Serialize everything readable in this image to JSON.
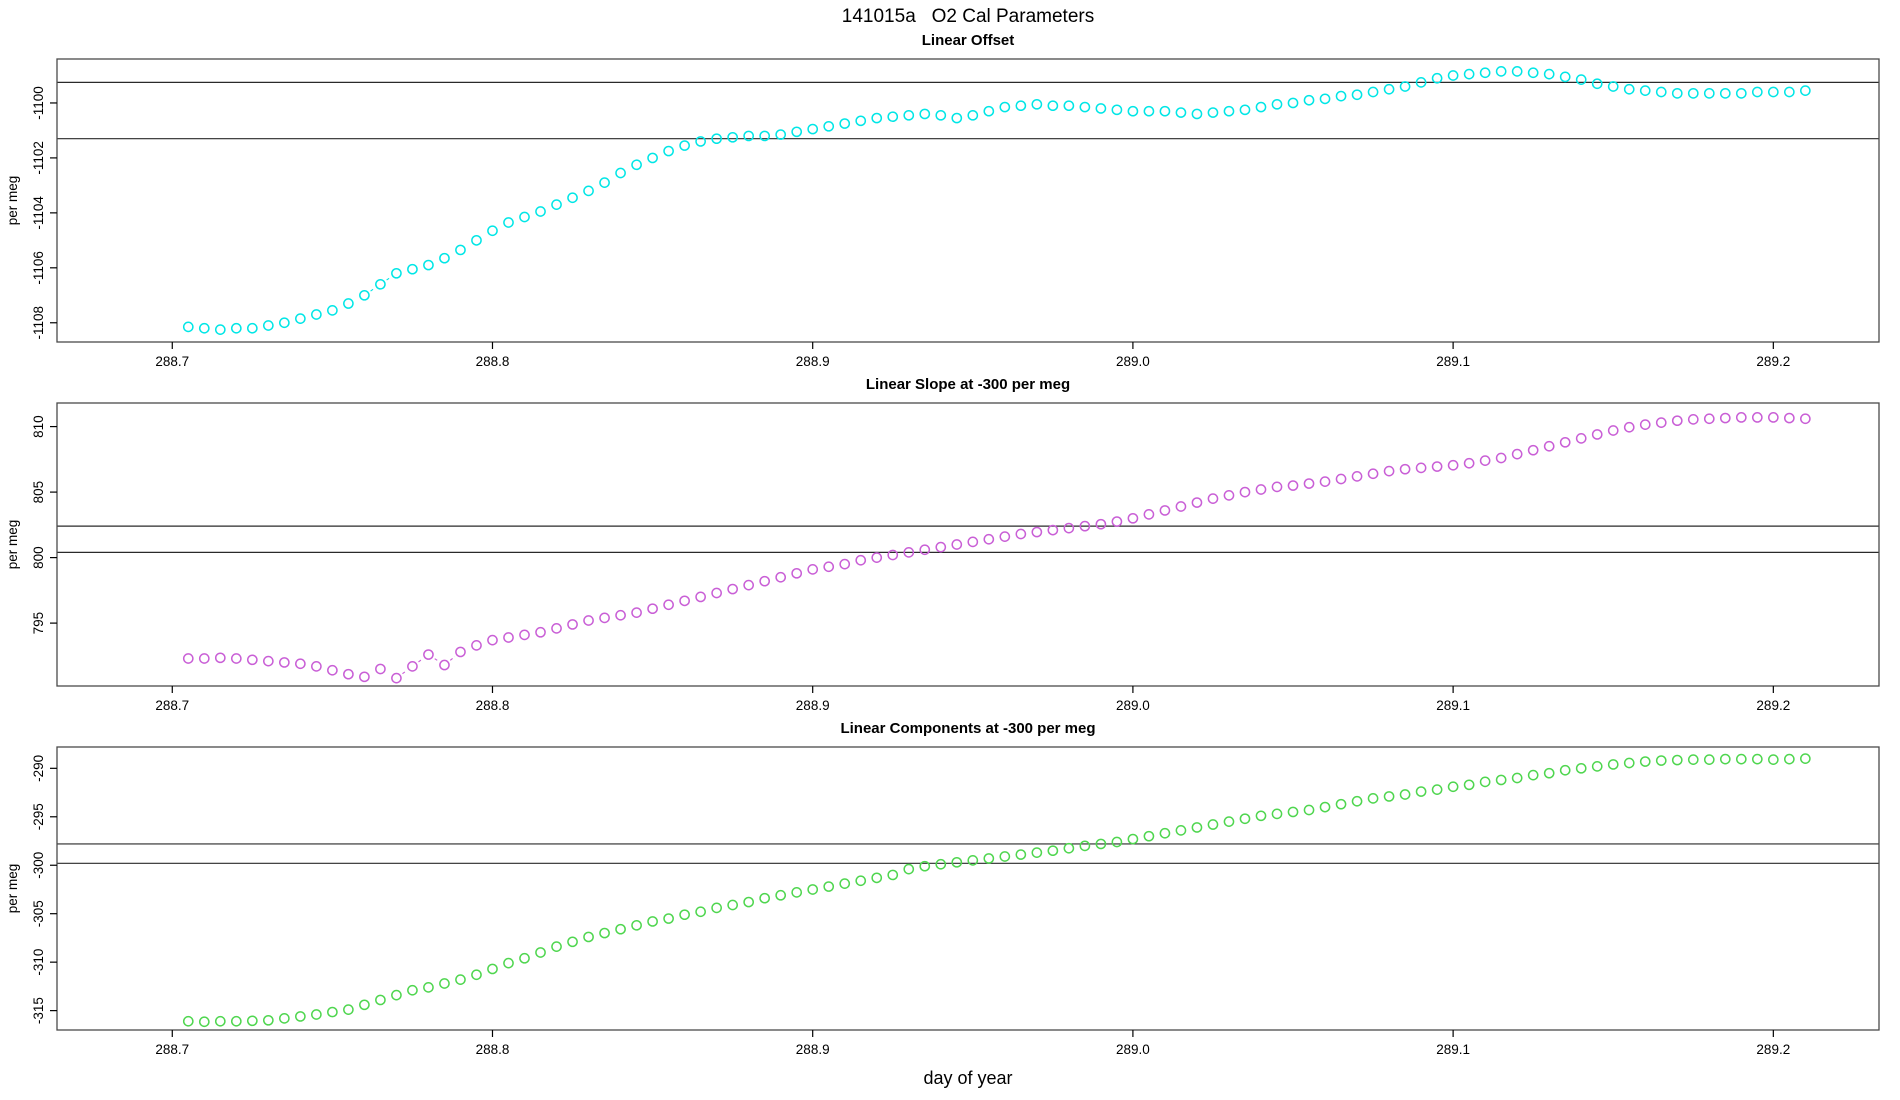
{
  "page_title": "141015a   O2 Cal Parameters",
  "x_axis_label": "day of year",
  "colors": {
    "offset_series": "#00e6e6",
    "slope_series": "#c95fd6",
    "components_series": "#4fd64f",
    "reference_line": "#2a2a2a",
    "panel_border": "#4a4a4a"
  },
  "chart_data": [
    {
      "type": "scatter",
      "title": "Linear Offset",
      "ylabel": "per meg",
      "marker": "open-circle",
      "grid": false,
      "xlim": [
        288.664,
        289.233
      ],
      "ylim": [
        -1108.7,
        -1098.4
      ],
      "xticks": [
        "288.7",
        "288.8",
        "288.9",
        "289.0",
        "289.1",
        "289.2"
      ],
      "xtick_values": [
        288.7,
        288.8,
        288.9,
        289.0,
        289.1,
        289.2
      ],
      "yticks": [
        "-1108",
        "-1106",
        "-1104",
        "-1102",
        "-1100"
      ],
      "ytick_values": [
        -1108,
        -1106,
        -1104,
        -1102,
        -1100
      ],
      "hlines": [
        -1099.25,
        -1101.3
      ],
      "series": [
        {
          "name": "linear offset",
          "color_key": "offset_series",
          "x": [
            288.705,
            288.71,
            288.715,
            288.72,
            288.725,
            288.73,
            288.735,
            288.74,
            288.745,
            288.75,
            288.755,
            288.76,
            288.765,
            288.77,
            288.775,
            288.78,
            288.785,
            288.79,
            288.795,
            288.8,
            288.805,
            288.81,
            288.815,
            288.82,
            288.825,
            288.83,
            288.835,
            288.84,
            288.845,
            288.85,
            288.855,
            288.86,
            288.865,
            288.87,
            288.875,
            288.88,
            288.885,
            288.89,
            288.895,
            288.9,
            288.905,
            288.91,
            288.915,
            288.92,
            288.925,
            288.93,
            288.935,
            288.94,
            288.945,
            288.95,
            288.955,
            288.96,
            288.965,
            288.97,
            288.975,
            288.98,
            288.985,
            288.99,
            288.995,
            289.0,
            289.005,
            289.01,
            289.015,
            289.02,
            289.025,
            289.03,
            289.035,
            289.04,
            289.045,
            289.05,
            289.055,
            289.06,
            289.065,
            289.07,
            289.075,
            289.08,
            289.085,
            289.09,
            289.095,
            289.1,
            289.105,
            289.11,
            289.115,
            289.12,
            289.125,
            289.13,
            289.135,
            289.14,
            289.145,
            289.15,
            289.155,
            289.16,
            289.165,
            289.17,
            289.175,
            289.18,
            289.185,
            289.19,
            289.195,
            289.2,
            289.205,
            289.21
          ],
          "y": [
            -1108.15,
            -1108.2,
            -1108.25,
            -1108.2,
            -1108.2,
            -1108.1,
            -1108.0,
            -1107.85,
            -1107.7,
            -1107.55,
            -1107.3,
            -1107.0,
            -1106.6,
            -1106.2,
            -1106.05,
            -1105.9,
            -1105.65,
            -1105.35,
            -1105.0,
            -1104.65,
            -1104.35,
            -1104.15,
            -1103.95,
            -1103.7,
            -1103.45,
            -1103.2,
            -1102.9,
            -1102.55,
            -1102.25,
            -1102.0,
            -1101.75,
            -1101.55,
            -1101.4,
            -1101.3,
            -1101.25,
            -1101.2,
            -1101.2,
            -1101.15,
            -1101.05,
            -1100.95,
            -1100.85,
            -1100.75,
            -1100.65,
            -1100.55,
            -1100.5,
            -1100.45,
            -1100.4,
            -1100.45,
            -1100.55,
            -1100.45,
            -1100.3,
            -1100.15,
            -1100.1,
            -1100.05,
            -1100.1,
            -1100.1,
            -1100.15,
            -1100.2,
            -1100.25,
            -1100.3,
            -1100.3,
            -1100.3,
            -1100.35,
            -1100.4,
            -1100.35,
            -1100.3,
            -1100.25,
            -1100.15,
            -1100.05,
            -1100.0,
            -1099.9,
            -1099.85,
            -1099.75,
            -1099.7,
            -1099.6,
            -1099.5,
            -1099.4,
            -1099.25,
            -1099.1,
            -1099.0,
            -1098.95,
            -1098.9,
            -1098.85,
            -1098.85,
            -1098.9,
            -1098.95,
            -1099.05,
            -1099.15,
            -1099.3,
            -1099.4,
            -1099.5,
            -1099.55,
            -1099.6,
            -1099.65,
            -1099.65,
            -1099.65,
            -1099.65,
            -1099.65,
            -1099.6,
            -1099.6,
            -1099.6,
            -1099.55
          ]
        }
      ]
    },
    {
      "type": "scatter",
      "title": "Linear Slope at -300 per meg",
      "ylabel": "per meg",
      "marker": "open-circle",
      "grid": false,
      "xlim": [
        288.664,
        289.233
      ],
      "ylim": [
        790.2,
        811.8
      ],
      "xticks": [
        "288.7",
        "288.8",
        "288.9",
        "289.0",
        "289.1",
        "289.2"
      ],
      "xtick_values": [
        288.7,
        288.8,
        288.9,
        289.0,
        289.1,
        289.2
      ],
      "yticks": [
        "795",
        "800",
        "805",
        "810"
      ],
      "ytick_values": [
        795,
        800,
        805,
        810
      ],
      "hlines": [
        802.4,
        800.4
      ],
      "series": [
        {
          "name": "linear slope at -300 per meg",
          "color_key": "slope_series",
          "x": [
            288.705,
            288.71,
            288.715,
            288.72,
            288.725,
            288.73,
            288.735,
            288.74,
            288.745,
            288.75,
            288.755,
            288.76,
            288.765,
            288.77,
            288.775,
            288.78,
            288.785,
            288.79,
            288.795,
            288.8,
            288.805,
            288.81,
            288.815,
            288.82,
            288.825,
            288.83,
            288.835,
            288.84,
            288.845,
            288.85,
            288.855,
            288.86,
            288.865,
            288.87,
            288.875,
            288.88,
            288.885,
            288.89,
            288.895,
            288.9,
            288.905,
            288.91,
            288.915,
            288.92,
            288.925,
            288.93,
            288.935,
            288.94,
            288.945,
            288.95,
            288.955,
            288.96,
            288.965,
            288.97,
            288.975,
            288.98,
            288.985,
            288.99,
            288.995,
            289.0,
            289.005,
            289.01,
            289.015,
            289.02,
            289.025,
            289.03,
            289.035,
            289.04,
            289.045,
            289.05,
            289.055,
            289.06,
            289.065,
            289.07,
            289.075,
            289.08,
            289.085,
            289.09,
            289.095,
            289.1,
            289.105,
            289.11,
            289.115,
            289.12,
            289.125,
            289.13,
            289.135,
            289.14,
            289.145,
            289.15,
            289.155,
            289.16,
            289.165,
            289.17,
            289.175,
            289.18,
            289.185,
            289.19,
            289.195,
            289.2,
            289.205,
            289.21
          ],
          "y": [
            792.3,
            792.3,
            792.35,
            792.3,
            792.2,
            792.1,
            792.0,
            791.9,
            791.7,
            791.4,
            791.1,
            790.9,
            791.5,
            790.8,
            791.7,
            792.6,
            791.8,
            792.8,
            793.3,
            793.7,
            793.9,
            794.1,
            794.3,
            794.6,
            794.9,
            795.2,
            795.4,
            795.6,
            795.8,
            796.1,
            796.4,
            796.7,
            797.0,
            797.3,
            797.6,
            797.9,
            798.2,
            798.5,
            798.8,
            799.1,
            799.3,
            799.5,
            799.8,
            800.0,
            800.2,
            800.4,
            800.6,
            800.8,
            801.0,
            801.2,
            801.4,
            801.6,
            801.8,
            801.95,
            802.1,
            802.25,
            802.4,
            802.55,
            802.75,
            803.0,
            803.3,
            803.6,
            803.9,
            804.2,
            804.5,
            804.75,
            805.0,
            805.2,
            805.4,
            805.5,
            805.65,
            805.8,
            806.0,
            806.2,
            806.4,
            806.6,
            806.75,
            806.85,
            806.95,
            807.05,
            807.2,
            807.4,
            807.6,
            807.9,
            808.2,
            808.5,
            808.8,
            809.1,
            809.4,
            809.7,
            809.95,
            810.15,
            810.3,
            810.45,
            810.55,
            810.6,
            810.65,
            810.7,
            810.7,
            810.7,
            810.65,
            810.6
          ]
        }
      ]
    },
    {
      "type": "scatter",
      "title": "Linear Components at -300 per meg",
      "ylabel": "per meg",
      "marker": "open-circle",
      "grid": false,
      "xlim": [
        288.664,
        289.233
      ],
      "ylim": [
        -317.0,
        -287.8
      ],
      "xticks": [
        "288.7",
        "288.8",
        "288.9",
        "289.0",
        "289.1",
        "289.2"
      ],
      "xtick_values": [
        288.7,
        288.8,
        288.9,
        289.0,
        289.1,
        289.2
      ],
      "yticks": [
        "-315",
        "-310",
        "-305",
        "-300",
        "-295",
        "-290"
      ],
      "ytick_values": [
        -315,
        -310,
        -305,
        -300,
        -295,
        -290
      ],
      "hlines": [
        -297.8,
        -299.8
      ],
      "series": [
        {
          "name": "linear components at -300 per meg",
          "color_key": "components_series",
          "x": [
            288.705,
            288.71,
            288.715,
            288.72,
            288.725,
            288.73,
            288.735,
            288.74,
            288.745,
            288.75,
            288.755,
            288.76,
            288.765,
            288.77,
            288.775,
            288.78,
            288.785,
            288.79,
            288.795,
            288.8,
            288.805,
            288.81,
            288.815,
            288.82,
            288.825,
            288.83,
            288.835,
            288.84,
            288.845,
            288.85,
            288.855,
            288.86,
            288.865,
            288.87,
            288.875,
            288.88,
            288.885,
            288.89,
            288.895,
            288.9,
            288.905,
            288.91,
            288.915,
            288.92,
            288.925,
            288.93,
            288.935,
            288.94,
            288.945,
            288.95,
            288.955,
            288.96,
            288.965,
            288.97,
            288.975,
            288.98,
            288.985,
            288.99,
            288.995,
            289.0,
            289.005,
            289.01,
            289.015,
            289.02,
            289.025,
            289.03,
            289.035,
            289.04,
            289.045,
            289.05,
            289.055,
            289.06,
            289.065,
            289.07,
            289.075,
            289.08,
            289.085,
            289.09,
            289.095,
            289.1,
            289.105,
            289.11,
            289.115,
            289.12,
            289.125,
            289.13,
            289.135,
            289.14,
            289.145,
            289.15,
            289.155,
            289.16,
            289.165,
            289.17,
            289.175,
            289.18,
            289.185,
            289.19,
            289.195,
            289.2,
            289.205,
            289.21
          ],
          "y": [
            -316.1,
            -316.15,
            -316.1,
            -316.1,
            -316.05,
            -316.0,
            -315.8,
            -315.6,
            -315.4,
            -315.15,
            -314.9,
            -314.4,
            -313.9,
            -313.4,
            -312.9,
            -312.6,
            -312.2,
            -311.8,
            -311.3,
            -310.7,
            -310.1,
            -309.6,
            -309.0,
            -308.4,
            -307.9,
            -307.4,
            -307.0,
            -306.6,
            -306.2,
            -305.8,
            -305.5,
            -305.1,
            -304.8,
            -304.4,
            -304.1,
            -303.8,
            -303.4,
            -303.1,
            -302.8,
            -302.5,
            -302.2,
            -301.9,
            -301.6,
            -301.3,
            -301.0,
            -300.4,
            -300.1,
            -299.9,
            -299.7,
            -299.5,
            -299.3,
            -299.1,
            -298.9,
            -298.7,
            -298.5,
            -298.25,
            -298.0,
            -297.8,
            -297.6,
            -297.3,
            -297.0,
            -296.7,
            -296.4,
            -296.1,
            -295.8,
            -295.5,
            -295.2,
            -294.9,
            -294.7,
            -294.5,
            -294.3,
            -294.0,
            -293.7,
            -293.4,
            -293.1,
            -292.9,
            -292.7,
            -292.4,
            -292.2,
            -291.9,
            -291.7,
            -291.4,
            -291.2,
            -291.0,
            -290.7,
            -290.5,
            -290.2,
            -290.0,
            -289.8,
            -289.6,
            -289.45,
            -289.3,
            -289.2,
            -289.15,
            -289.1,
            -289.1,
            -289.05,
            -289.05,
            -289.05,
            -289.1,
            -289.05,
            -289.0
          ]
        }
      ]
    }
  ]
}
